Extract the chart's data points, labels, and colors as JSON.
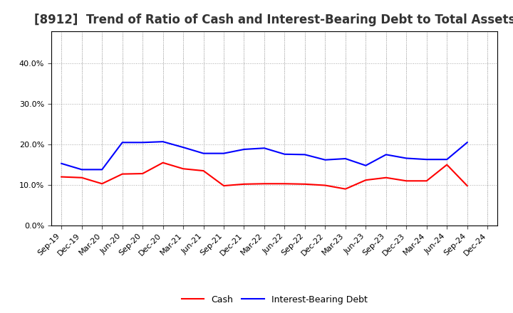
{
  "title": "[8912]  Trend of Ratio of Cash and Interest-Bearing Debt to Total Assets",
  "x_labels": [
    "Sep-19",
    "Dec-19",
    "Mar-20",
    "Jun-20",
    "Sep-20",
    "Dec-20",
    "Mar-21",
    "Jun-21",
    "Sep-21",
    "Dec-21",
    "Mar-22",
    "Jun-22",
    "Sep-22",
    "Dec-22",
    "Mar-23",
    "Jun-23",
    "Sep-23",
    "Dec-23",
    "Mar-24",
    "Jun-24",
    "Sep-24",
    "Dec-24"
  ],
  "cash": [
    0.12,
    0.118,
    0.103,
    0.127,
    0.128,
    0.155,
    0.14,
    0.135,
    0.098,
    0.102,
    0.103,
    0.103,
    0.102,
    0.099,
    0.09,
    0.112,
    0.118,
    0.11,
    0.11,
    0.15,
    0.098,
    null
  ],
  "ibd": [
    0.153,
    0.138,
    0.138,
    0.205,
    0.205,
    0.207,
    0.193,
    0.178,
    0.178,
    0.188,
    0.191,
    0.176,
    0.175,
    0.162,
    0.165,
    0.148,
    0.175,
    0.166,
    0.163,
    0.163,
    0.205,
    null
  ],
  "cash_color": "#ff0000",
  "ibd_color": "#0000ff",
  "ylim": [
    0.0,
    0.48
  ],
  "yticks": [
    0.0,
    0.1,
    0.2,
    0.3,
    0.4
  ],
  "background_color": "#ffffff",
  "grid_color": "#aaaaaa",
  "title_fontsize": 12,
  "legend_cash": "Cash",
  "legend_ibd": "Interest-Bearing Debt",
  "line_width": 1.5,
  "tick_fontsize": 8,
  "legend_fontsize": 9
}
